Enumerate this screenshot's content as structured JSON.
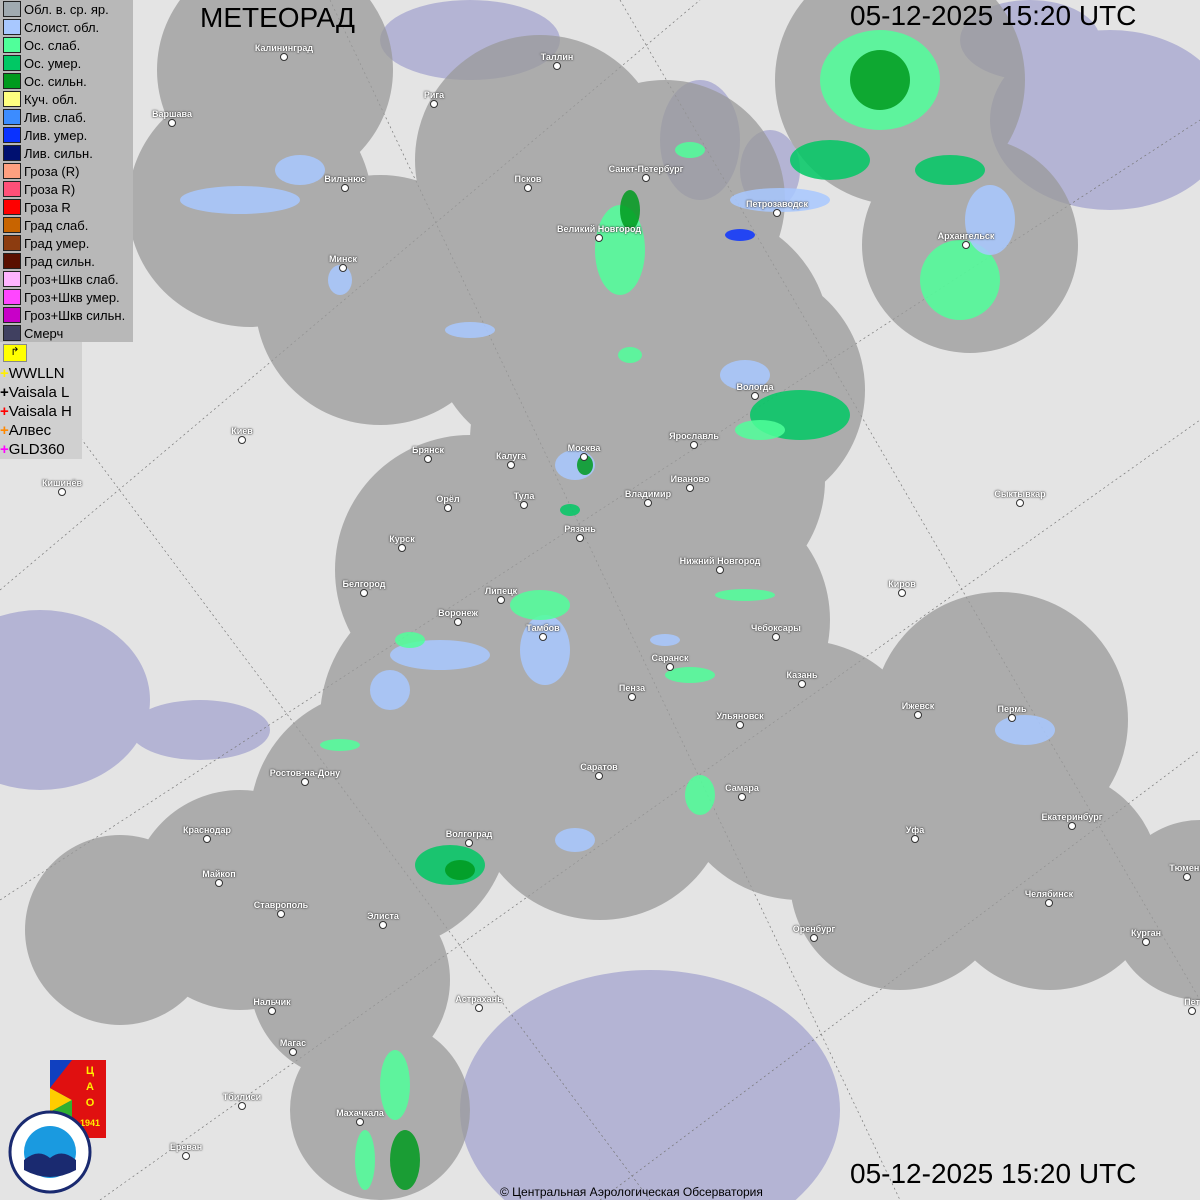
{
  "header": {
    "title": "МЕТЕОРАД",
    "datetime_top": "05-12-2025  15:20 UTC",
    "datetime_bottom": "05-12-2025  15:20 UTC"
  },
  "legend": [
    {
      "label": "Обл. в. ср. яр.",
      "color": "#a0aab0"
    },
    {
      "label": "Слоист. обл.",
      "color": "#a8c8ff"
    },
    {
      "label": "Ос. слаб.",
      "color": "#50ff9a"
    },
    {
      "label": "Ос. умер.",
      "color": "#00c864"
    },
    {
      "label": "Ос. сильн.",
      "color": "#009a1e"
    },
    {
      "label": "Куч. обл.",
      "color": "#ffff80"
    },
    {
      "label": "Лив. слаб.",
      "color": "#3c8cff"
    },
    {
      "label": "Лив. умер.",
      "color": "#0a32ff"
    },
    {
      "label": "Лив. сильн.",
      "color": "#001070"
    },
    {
      "label": "Гроза (R)",
      "color": "#ffa080"
    },
    {
      "label": "Гроза R)",
      "color": "#ff5078"
    },
    {
      "label": "Гроза R",
      "color": "#ff0000"
    },
    {
      "label": "Град слаб.",
      "color": "#c86400"
    },
    {
      "label": "Град умер.",
      "color": "#8c3c10"
    },
    {
      "label": "Град сильн.",
      "color": "#5a1000"
    },
    {
      "label": "Гроз+Шкв слаб.",
      "color": "#ffb4ff"
    },
    {
      "label": "Гроз+Шкв умер.",
      "color": "#ff46ff"
    },
    {
      "label": "Гроз+Шкв сильн.",
      "color": "#c800c8"
    },
    {
      "label": "Смерч",
      "color": "#404060"
    }
  ],
  "lightning": [
    {
      "label": "WWLLN",
      "color": "#ffee00"
    },
    {
      "label": "Vaisala L",
      "color": "#000000"
    },
    {
      "label": "Vaisala H",
      "color": "#ff0000"
    },
    {
      "label": "Алвес",
      "color": "#ff8800"
    },
    {
      "label": "GLD360",
      "color": "#ff00ff"
    }
  ],
  "cities": [
    "Калининград",
    "Рига",
    "Таллин",
    "Варшава",
    "Вильнюс",
    "Псков",
    "Санкт-Петербург",
    "Петрозаводск",
    "Архангельск",
    "Великий Новгород",
    "Минск",
    "Вологда",
    "Ярославль",
    "Москва",
    "Калуга",
    "Брянск",
    "Киев",
    "Иваново",
    "Владимир",
    "Тула",
    "Орёл",
    "Кишинёв",
    "Сыктывкар",
    "Рязань",
    "Курск",
    "Нижний Новгород",
    "Киров",
    "Белгород",
    "Липецк",
    "Воронеж",
    "Тамбов",
    "Чебоксары",
    "Саранск",
    "Казань",
    "Пенза",
    "Ижевск",
    "Пермь",
    "Ульяновск",
    "Ростов-на-Дону",
    "Саратов",
    "Самара",
    "Краснодар",
    "Волгоград",
    "Уфа",
    "Екатеринбург",
    "Майкоп",
    "Тюмень",
    "Ставрополь",
    "Элиста",
    "Челябинск",
    "Оренбург",
    "Курган",
    "Нальчик",
    "Астрахань",
    "Магас",
    "Тбилиси",
    "Махачкала",
    "Ереван",
    "Пет"
  ],
  "logos": {
    "cao": "ЦАО 1941",
    "roshydromet": "РОСГИДРОМЕТ ROSHYDROMET"
  },
  "copyright": "© Центральная Аэрологическая Обсерватория"
}
